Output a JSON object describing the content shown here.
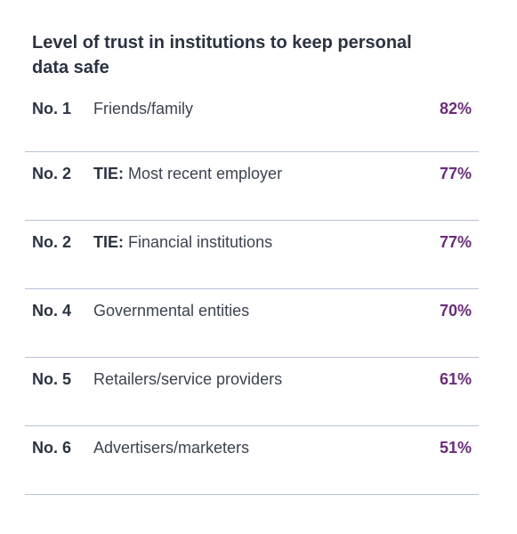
{
  "chart_data": {
    "type": "table",
    "title": "Level of trust in institutions to keep personal data safe",
    "rows": [
      {
        "rank": "No. 1",
        "tie": "",
        "label": "Friends/family",
        "value": 82,
        "value_label": "82%"
      },
      {
        "rank": "No. 2",
        "tie": "TIE:",
        "label": "Most recent employer",
        "value": 77,
        "value_label": "77%"
      },
      {
        "rank": "No. 2",
        "tie": "TIE:",
        "label": "Financial institutions",
        "value": 77,
        "value_label": "77%"
      },
      {
        "rank": "No. 4",
        "tie": "",
        "label": "Governmental entities",
        "value": 70,
        "value_label": "70%"
      },
      {
        "rank": "No. 5",
        "tie": "",
        "label": "Retailers/service providers",
        "value": 61,
        "value_label": "61%"
      },
      {
        "rank": "No. 6",
        "tie": "",
        "label": "Advertisers/marketers",
        "value": 51,
        "value_label": "51%"
      }
    ],
    "colors": {
      "text": "#2b3340",
      "value": "#6b2d7a",
      "divider": "#b8c1d8"
    }
  }
}
